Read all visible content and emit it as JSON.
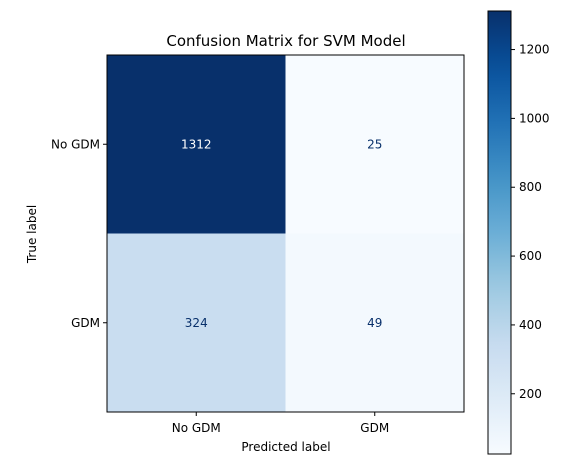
{
  "chart_data": {
    "type": "heatmap",
    "title": "Confusion Matrix for SVM Model",
    "xlabel": "Predicted label",
    "ylabel": "True label",
    "row_labels": [
      "No GDM",
      "GDM"
    ],
    "col_labels": [
      "No GDM",
      "GDM"
    ],
    "values": [
      [
        1312,
        25
      ],
      [
        324,
        49
      ]
    ],
    "colormap": "Blues",
    "value_range": [
      25,
      1312
    ],
    "colorbar_ticks": [
      200,
      400,
      600,
      800,
      1000,
      1200
    ],
    "colors": {
      "dark_cell": "#08306b",
      "light_cell": "#f7fbff",
      "text_dark": "#08306b",
      "text_light": "#ffffff",
      "axis": "#000000"
    }
  }
}
